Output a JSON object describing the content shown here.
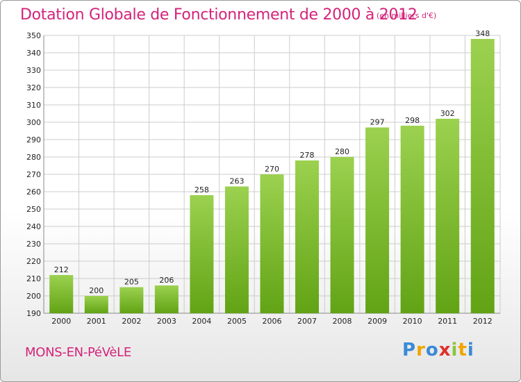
{
  "header": {
    "title": "Dotation Globale de Fonctionnement de 2000 à 2012",
    "unit": "(en milliers d'€)"
  },
  "footer": {
    "commune": "MONS-EN-PéVèLE",
    "logo": [
      "P",
      "r",
      "o",
      "x",
      "i",
      "t",
      "i"
    ]
  },
  "colors": {
    "accent": "#d4237a",
    "bar_light": "#9bd14f",
    "bar_dark": "#62a315",
    "logo": [
      "#3a8ad6",
      "#f0a500",
      "#3a8ad6",
      "#e0302a",
      "#8ac43f",
      "#f0a500",
      "#3a8ad6"
    ]
  },
  "chart_data": {
    "type": "bar",
    "title": "Dotation Globale de Fonctionnement de 2000 à 2012",
    "subtitle": "(en milliers d'€)",
    "categories": [
      "2000",
      "2001",
      "2002",
      "2003",
      "2004",
      "2005",
      "2006",
      "2007",
      "2008",
      "2009",
      "2010",
      "2011",
      "2012"
    ],
    "values": [
      212,
      200,
      205,
      206,
      258,
      263,
      270,
      278,
      280,
      297,
      298,
      302,
      348
    ],
    "ylim": [
      190,
      350
    ],
    "yticks": [
      190,
      200,
      210,
      220,
      230,
      240,
      250,
      260,
      270,
      280,
      290,
      300,
      310,
      320,
      330,
      340,
      350
    ],
    "grid": true,
    "xlabel": "",
    "ylabel": ""
  }
}
